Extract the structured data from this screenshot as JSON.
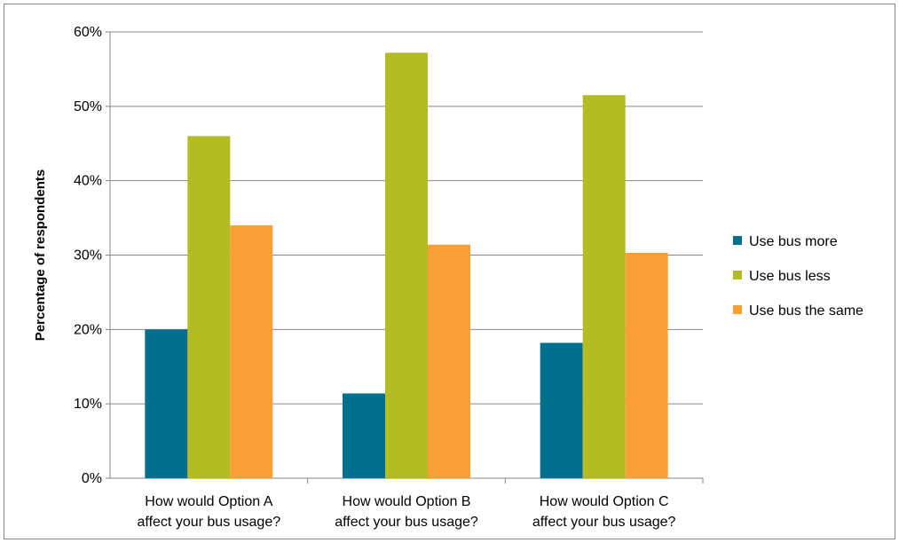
{
  "chart_data": {
    "type": "bar",
    "title": "",
    "xlabel": "",
    "ylabel": "Percentage of respondents",
    "ylim": [
      0,
      60
    ],
    "yticks": [
      "0%",
      "10%",
      "20%",
      "30%",
      "40%",
      "50%",
      "60%"
    ],
    "categories": [
      [
        "How would Option A",
        "affect your bus usage?"
      ],
      [
        "How would Option B",
        "affect your bus usage?"
      ],
      [
        "How would Option C",
        "affect your bus usage?"
      ]
    ],
    "series": [
      {
        "name": "Use bus more",
        "color": "#00708C",
        "values": [
          20,
          11.4,
          18.2
        ]
      },
      {
        "name": "Use bus less",
        "color": "#B3BC23",
        "values": [
          46,
          57.2,
          51.5
        ]
      },
      {
        "name": "Use bus the same",
        "color": "#F8A036",
        "values": [
          34,
          31.4,
          30.3
        ]
      }
    ],
    "grid": true,
    "legend_position": "right"
  }
}
